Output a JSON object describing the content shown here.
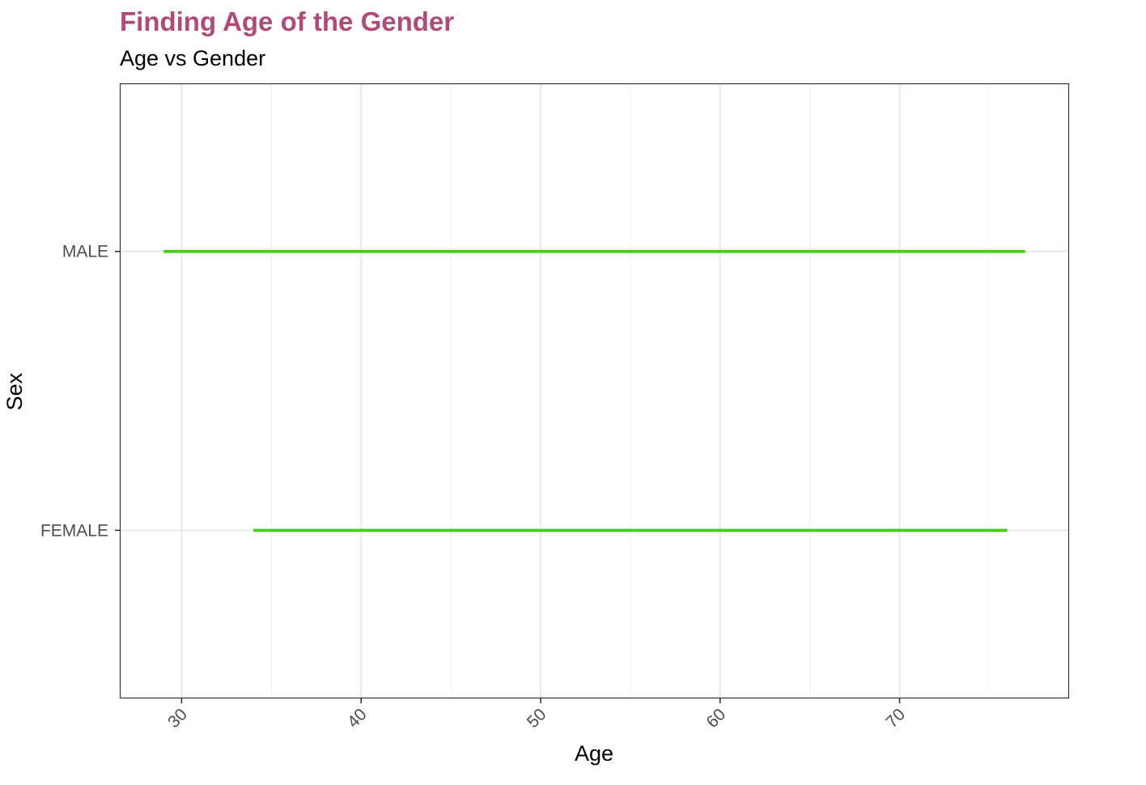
{
  "chart_data": {
    "type": "range_bar",
    "title": "Finding Age of the Gender",
    "subtitle": "Age vs Gender",
    "xlabel": "Age",
    "ylabel": "Sex",
    "xlim": [
      26.6,
      79.4
    ],
    "xticks": [
      30,
      40,
      50,
      60,
      70
    ],
    "xtick_labels": [
      "30",
      "40",
      "50",
      "60",
      "70"
    ],
    "x_minor_ticks": [
      35,
      45,
      55,
      65,
      75
    ],
    "categories": [
      "FEMALE",
      "MALE"
    ],
    "ranges": [
      {
        "category": "FEMALE",
        "min": 34,
        "max": 76
      },
      {
        "category": "MALE",
        "min": 29,
        "max": 77
      }
    ],
    "grid": true,
    "legend": "none",
    "colors": {
      "title": "#b04a78",
      "segment": "#3fd010",
      "grid_major": "#ebebeb",
      "grid_minor": "#f2f2f2",
      "border": "#333333"
    }
  }
}
